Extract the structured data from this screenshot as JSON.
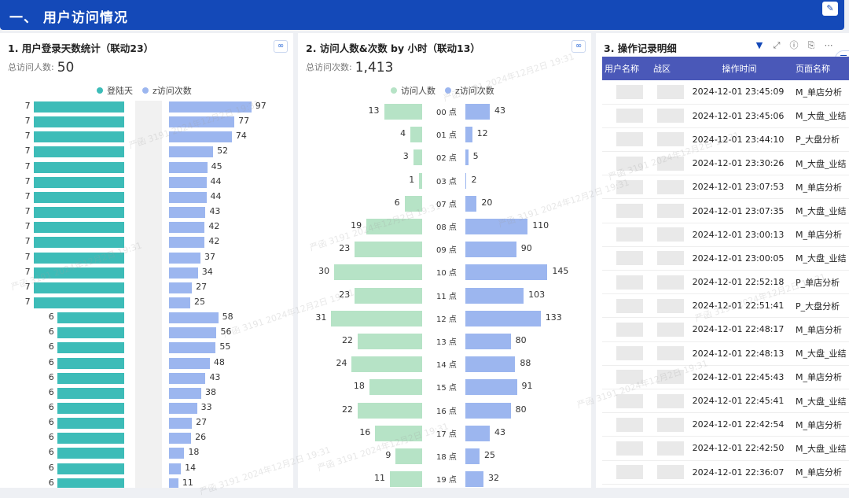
{
  "header": {
    "title": "一、 用户访问情况"
  },
  "panel1": {
    "title": "1. 用户登录天数统计（联动23）",
    "kpi_label": "总访问人数:",
    "kpi_value": "50",
    "legend": [
      {
        "name": "登陆天",
        "color": "#3dbcb8"
      },
      {
        "name": "z访问次数",
        "color": "#9cb6ef"
      }
    ],
    "chart_data": {
      "type": "bar",
      "series": [
        {
          "name": "登陆天",
          "values": [
            7,
            7,
            7,
            7,
            7,
            7,
            7,
            7,
            7,
            7,
            7,
            7,
            7,
            7,
            6,
            6,
            6,
            6,
            6,
            6,
            6,
            6,
            6,
            6,
            6,
            6
          ]
        },
        {
          "name": "z访问次数",
          "values": [
            97,
            77,
            74,
            52,
            45,
            44,
            44,
            43,
            42,
            42,
            37,
            34,
            27,
            25,
            58,
            56,
            55,
            48,
            43,
            38,
            33,
            27,
            26,
            18,
            14,
            11
          ]
        }
      ]
    }
  },
  "panel2": {
    "title": "2. 访问人数&次数 by 小时（联动13）",
    "kpi_label": "总访问次数:",
    "kpi_value": "1,413",
    "legend": [
      {
        "name": "访问人数",
        "color": "#b6e3c6"
      },
      {
        "name": "z访问次数",
        "color": "#9cb6ef"
      }
    ],
    "chart_data": {
      "type": "bar",
      "categories": [
        "00 点",
        "01 点",
        "02 点",
        "03 点",
        "07 点",
        "08 点",
        "09 点",
        "10 点",
        "11 点",
        "12 点",
        "13 点",
        "14 点",
        "15 点",
        "16 点",
        "17 点",
        "18 点",
        "19 点"
      ],
      "series": [
        {
          "name": "访问人数",
          "values": [
            13,
            4,
            3,
            1,
            6,
            19,
            23,
            30,
            23,
            31,
            22,
            24,
            18,
            22,
            16,
            9,
            11
          ]
        },
        {
          "name": "z访问次数",
          "values": [
            43,
            12,
            5,
            2,
            20,
            110,
            90,
            145,
            103,
            133,
            80,
            88,
            91,
            80,
            43,
            25,
            32
          ]
        }
      ]
    }
  },
  "panel3": {
    "title": "3. 操作记录明细",
    "columns": [
      "用户名称",
      "战区",
      "操作时间",
      "页面名称"
    ],
    "rows": [
      {
        "time": "2024-12-01 23:45:09",
        "page": "M_单店分析"
      },
      {
        "time": "2024-12-01 23:45:06",
        "page": "M_大盘_业结"
      },
      {
        "time": "2024-12-01 23:44:10",
        "page": "P_大盘分析"
      },
      {
        "time": "2024-12-01 23:30:26",
        "page": "M_大盘_业结"
      },
      {
        "time": "2024-12-01 23:07:53",
        "page": "M_单店分析"
      },
      {
        "time": "2024-12-01 23:07:35",
        "page": "M_大盘_业结"
      },
      {
        "time": "2024-12-01 23:00:13",
        "page": "M_单店分析"
      },
      {
        "time": "2024-12-01 23:00:05",
        "page": "M_大盘_业结"
      },
      {
        "time": "2024-12-01 22:52:18",
        "page": "P_单店分析"
      },
      {
        "time": "2024-12-01 22:51:41",
        "page": "P_大盘分析"
      },
      {
        "time": "2024-12-01 22:48:17",
        "page": "M_单店分析"
      },
      {
        "time": "2024-12-01 22:48:13",
        "page": "M_大盘_业结"
      },
      {
        "time": "2024-12-01 22:45:43",
        "page": "M_单店分析"
      },
      {
        "time": "2024-12-01 22:45:41",
        "page": "M_大盘_业结"
      },
      {
        "time": "2024-12-01 22:42:54",
        "page": "M_单店分析"
      },
      {
        "time": "2024-12-01 22:42:50",
        "page": "M_大盘_业结"
      },
      {
        "time": "2024-12-01 22:36:07",
        "page": "M_单店分析"
      }
    ]
  },
  "watermark": "严函 3191 2024年12月2日 19:31"
}
